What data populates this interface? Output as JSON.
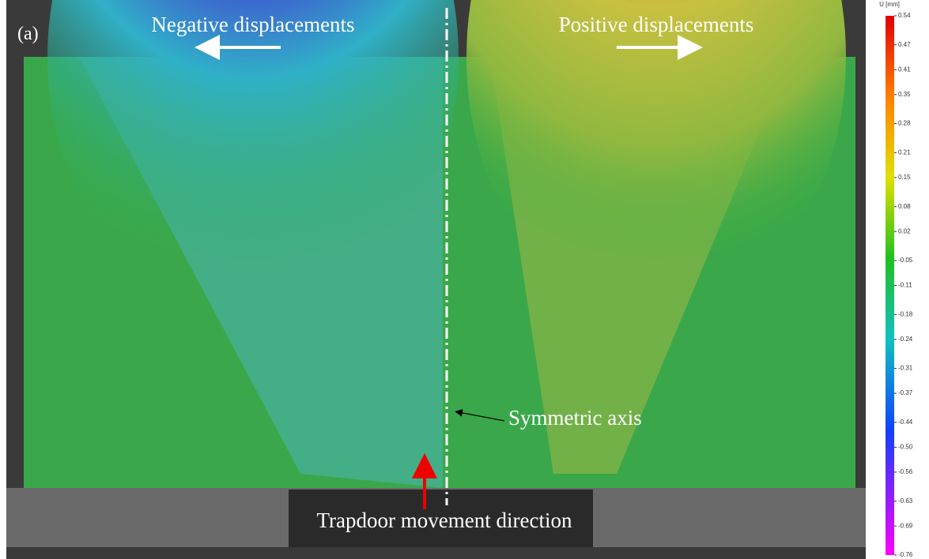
{
  "panel_label": "(a)",
  "annotations": {
    "negative": "Negative displacements",
    "positive": "Positive displacements",
    "axis": "Symmetric axis",
    "trapdoor": "Trapdoor movement direction"
  },
  "colorbar": {
    "title": "U [mm]",
    "range": [
      0.54,
      -0.76
    ],
    "ticks": [
      0.54,
      0.47,
      0.41,
      0.35,
      0.28,
      0.21,
      0.15,
      0.08,
      0.02,
      -0.05,
      -0.11,
      -0.18,
      -0.24,
      -0.31,
      -0.37,
      -0.44,
      {
        "value": -0.5,
        "label": "-0.50"
      },
      -0.56,
      -0.63,
      -0.69,
      -0.76
    ]
  }
}
